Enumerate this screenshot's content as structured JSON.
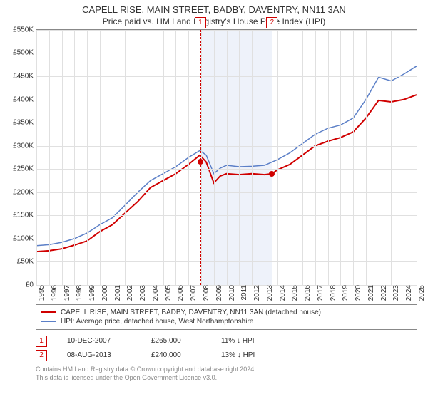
{
  "title": "CAPELL RISE, MAIN STREET, BADBY, DAVENTRY, NN11 3AN",
  "subtitle": "Price paid vs. HM Land Registry's House Price Index (HPI)",
  "chart": {
    "type": "line",
    "ylim": [
      0,
      550000
    ],
    "ytick_step": 50000,
    "yticks": [
      "£0",
      "£50K",
      "£100K",
      "£150K",
      "£200K",
      "£250K",
      "£300K",
      "£350K",
      "£400K",
      "£450K",
      "£500K",
      "£550K"
    ],
    "xyears": [
      1995,
      1996,
      1997,
      1998,
      1999,
      2000,
      2001,
      2002,
      2003,
      2004,
      2005,
      2006,
      2007,
      2008,
      2009,
      2010,
      2011,
      2012,
      2013,
      2014,
      2015,
      2016,
      2017,
      2018,
      2019,
      2020,
      2021,
      2022,
      2023,
      2024,
      2025
    ],
    "shaded_region": {
      "from_year": 2008.0,
      "to_year": 2013.6
    },
    "background_color": "#ffffff",
    "grid_color": "#e0e0e0",
    "border_color": "#888888",
    "series": [
      {
        "name": "property",
        "color": "#d00000",
        "width": 2,
        "label": "CAPELL RISE, MAIN STREET, BADBY, DAVENTRY, NN11 3AN (detached house)",
        "points": [
          [
            1995,
            72000
          ],
          [
            1996,
            74000
          ],
          [
            1997,
            78000
          ],
          [
            1998,
            86000
          ],
          [
            1999,
            95000
          ],
          [
            2000,
            115000
          ],
          [
            2001,
            130000
          ],
          [
            2002,
            155000
          ],
          [
            2003,
            180000
          ],
          [
            2004,
            210000
          ],
          [
            2005,
            225000
          ],
          [
            2006,
            240000
          ],
          [
            2007,
            260000
          ],
          [
            2007.9,
            280000
          ],
          [
            2008.4,
            265000
          ],
          [
            2009,
            220000
          ],
          [
            2009.5,
            235000
          ],
          [
            2010,
            240000
          ],
          [
            2011,
            238000
          ],
          [
            2012,
            240000
          ],
          [
            2013,
            238000
          ],
          [
            2013.6,
            240000
          ],
          [
            2014,
            248000
          ],
          [
            2015,
            260000
          ],
          [
            2016,
            280000
          ],
          [
            2017,
            300000
          ],
          [
            2018,
            310000
          ],
          [
            2019,
            318000
          ],
          [
            2020,
            330000
          ],
          [
            2021,
            360000
          ],
          [
            2022,
            398000
          ],
          [
            2023,
            395000
          ],
          [
            2024,
            400000
          ],
          [
            2025,
            410000
          ]
        ]
      },
      {
        "name": "hpi",
        "color": "#5B7FC7",
        "width": 1.5,
        "label": "HPI: Average price, detached house, West Northamptonshire",
        "points": [
          [
            1995,
            85000
          ],
          [
            1996,
            87000
          ],
          [
            1997,
            92000
          ],
          [
            1998,
            100000
          ],
          [
            1999,
            112000
          ],
          [
            2000,
            130000
          ],
          [
            2001,
            145000
          ],
          [
            2002,
            172000
          ],
          [
            2003,
            200000
          ],
          [
            2004,
            225000
          ],
          [
            2005,
            240000
          ],
          [
            2006,
            255000
          ],
          [
            2007,
            275000
          ],
          [
            2007.9,
            290000
          ],
          [
            2008.4,
            280000
          ],
          [
            2009,
            240000
          ],
          [
            2009.5,
            252000
          ],
          [
            2010,
            258000
          ],
          [
            2011,
            255000
          ],
          [
            2012,
            256000
          ],
          [
            2013,
            258000
          ],
          [
            2014,
            270000
          ],
          [
            2015,
            285000
          ],
          [
            2016,
            305000
          ],
          [
            2017,
            325000
          ],
          [
            2018,
            338000
          ],
          [
            2019,
            345000
          ],
          [
            2020,
            360000
          ],
          [
            2021,
            400000
          ],
          [
            2022,
            448000
          ],
          [
            2023,
            440000
          ],
          [
            2024,
            455000
          ],
          [
            2025,
            472000
          ]
        ]
      }
    ],
    "events": [
      {
        "n": "1",
        "year": 2007.94,
        "price": 265000
      },
      {
        "n": "2",
        "year": 2013.6,
        "price": 240000
      }
    ]
  },
  "legend": {
    "items": [
      {
        "color": "#d00000",
        "label": "CAPELL RISE, MAIN STREET, BADBY, DAVENTRY, NN11 3AN (detached house)"
      },
      {
        "color": "#5B7FC7",
        "label": "HPI: Average price, detached house, West Northamptonshire"
      }
    ]
  },
  "sales": [
    {
      "n": "1",
      "date": "10-DEC-2007",
      "price": "£265,000",
      "pct": "11% ↓ HPI"
    },
    {
      "n": "2",
      "date": "08-AUG-2013",
      "price": "£240,000",
      "pct": "13% ↓ HPI"
    }
  ],
  "footer": {
    "line1": "Contains HM Land Registry data © Crown copyright and database right 2024.",
    "line2": "This data is licensed under the Open Government Licence v3.0."
  }
}
